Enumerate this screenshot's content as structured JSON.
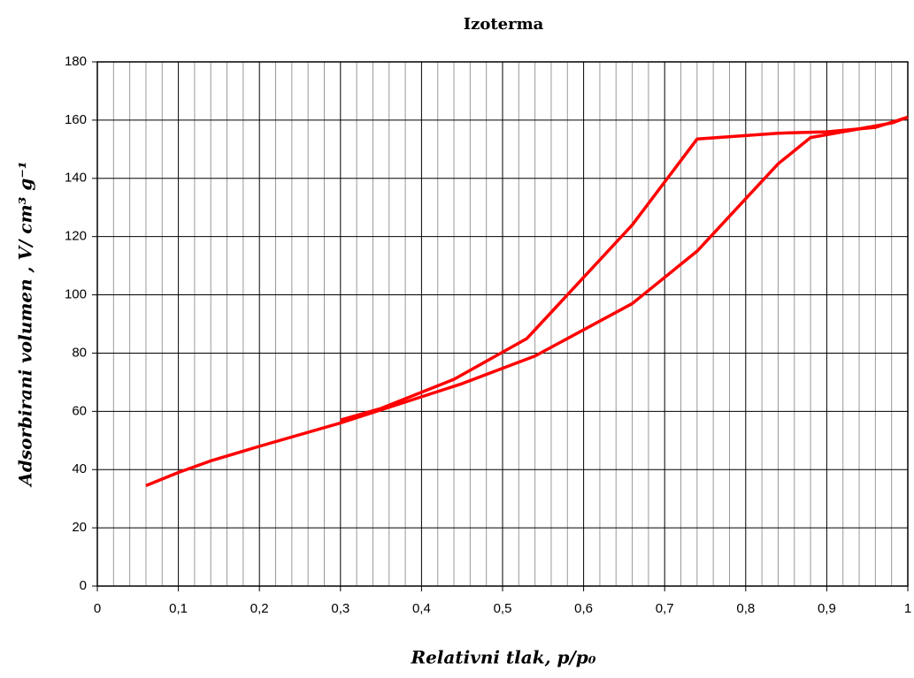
{
  "chart_data": {
    "type": "line",
    "title": "Izoterma",
    "x_label": "Relativni tlak, p/p₀",
    "y_label": "Adsorbirani volumen , V/ cm³ g⁻¹",
    "series": [
      {
        "color": "#ff0000",
        "x": [
          0.06,
          0.1,
          0.14,
          0.2,
          0.3,
          0.4,
          0.45,
          0.54,
          0.66,
          0.74,
          0.8,
          0.84,
          0.88,
          0.96,
          0.98,
          1.0
        ],
        "values": [
          34.5,
          39,
          43,
          48,
          56,
          65,
          69.5,
          79,
          97,
          115,
          133,
          145,
          154,
          158,
          159,
          161
        ]
      },
      {
        "color": "#ff0000",
        "x": [
          1.0,
          0.96,
          0.9,
          0.84,
          0.74,
          0.66,
          0.53,
          0.44,
          0.35,
          0.3
        ],
        "values": [
          161,
          157.5,
          156,
          155.5,
          153.5,
          124,
          85,
          71,
          61,
          57
        ]
      }
    ],
    "xlim": [
      0,
      1
    ],
    "ylim": [
      0,
      180
    ],
    "xticks": [
      0,
      {
        "value": 0.1,
        "label": "0,1"
      },
      {
        "value": 0.2,
        "label": "0,2"
      },
      {
        "value": 0.3,
        "label": "0,3"
      },
      {
        "value": 0.4,
        "label": "0,4"
      },
      {
        "value": 0.5,
        "label": "0,5"
      },
      {
        "value": 0.6,
        "label": "0,6"
      },
      {
        "value": 0.7,
        "label": "0,7"
      },
      {
        "value": 0.8,
        "label": "0,8"
      },
      {
        "value": 0.9,
        "label": "0,9"
      },
      1
    ],
    "xminorticks": [
      0.02,
      0.04,
      0.06,
      0.08,
      0.12,
      0.14,
      0.16,
      0.18,
      0.22,
      0.24,
      0.26,
      0.28,
      0.32,
      0.34,
      0.36,
      0.38,
      0.42,
      0.44,
      0.46,
      0.48,
      0.52,
      0.54,
      0.56,
      0.58,
      0.62,
      0.64,
      0.66,
      0.68,
      0.72,
      0.74,
      0.76,
      0.78,
      0.82,
      0.84,
      0.86,
      0.88,
      0.92,
      0.94,
      0.96,
      0.98
    ],
    "yticks": [
      0,
      20,
      40,
      60,
      80,
      100,
      120,
      140,
      160,
      180
    ],
    "grid": true
  }
}
